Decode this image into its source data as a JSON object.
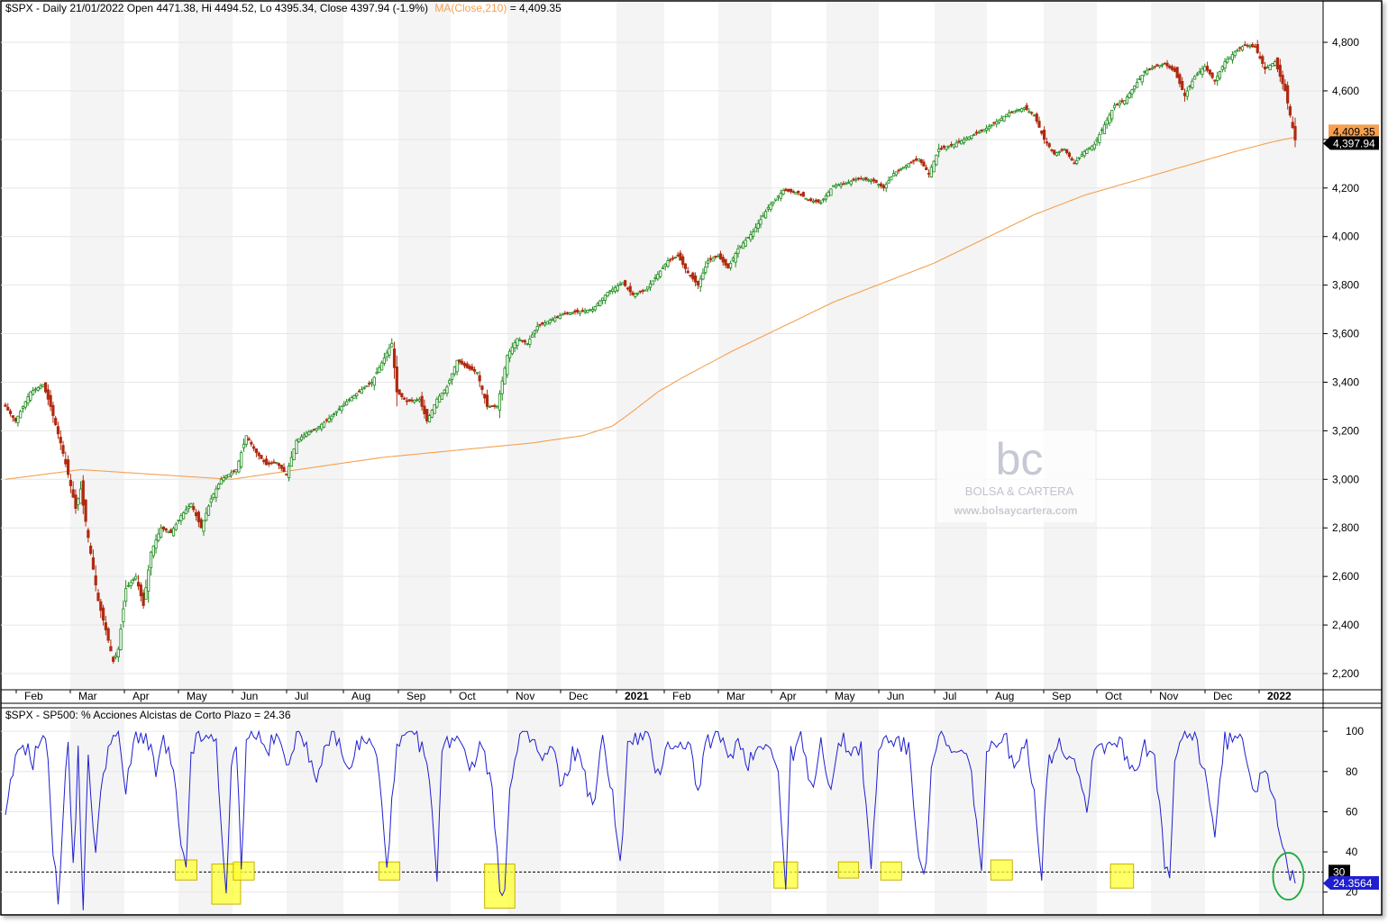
{
  "header": {
    "price_info": "$SPX - Daily 21/01/2022 Open 4471.38, Hi 4494.52, Lo 4395.34, Close 4397.94 (-1.9%)",
    "ma_label": "MA(Close,210)",
    "ma_value": " = 4,409.35",
    "indicator_info": "$SPX - SP500: % Acciones Alcistas de Corto Plazo = 24.36"
  },
  "watermark": {
    "logo_text": "bc",
    "name": "BOLSA & CARTERA",
    "url": "www.bolsaycartera.com"
  },
  "colors": {
    "up": "#1a8a1a",
    "down": "#b02a10",
    "ma": "#f5a050",
    "indicator": "#1f1fd0",
    "highlight": "#ffff33",
    "circle": "#1aaa3a"
  },
  "chart_data": [
    {
      "type": "candlestick",
      "title": "$SPX - Daily 21/01/2022",
      "ylim": [
        2150,
        4870
      ],
      "yticks": [
        2200,
        2400,
        2600,
        2800,
        3000,
        3200,
        3400,
        3600,
        3800,
        4000,
        4200,
        4400,
        4600,
        4800
      ],
      "ytick_labels": [
        "2,200",
        "2,400",
        "2,600",
        "2,800",
        "3,000",
        "3,200",
        "3,400",
        "3,600",
        "3,800",
        "4,000",
        "4,200",
        "4,400",
        "4,600",
        "4,800"
      ],
      "last_close_label": "4,397.94",
      "ma_label_value": "4,409.35",
      "x_months": [
        {
          "label": "Feb",
          "bold": false
        },
        {
          "label": "Mar",
          "bold": false
        },
        {
          "label": "Apr",
          "bold": false
        },
        {
          "label": "May",
          "bold": false
        },
        {
          "label": "Jun",
          "bold": false
        },
        {
          "label": "Jul",
          "bold": false
        },
        {
          "label": "Aug",
          "bold": false
        },
        {
          "label": "Sep",
          "bold": false
        },
        {
          "label": "Oct",
          "bold": false
        },
        {
          "label": "Nov",
          "bold": false
        },
        {
          "label": "Dec",
          "bold": false
        },
        {
          "label": "2021",
          "bold": true
        },
        {
          "label": "Feb",
          "bold": false
        },
        {
          "label": "Mar",
          "bold": false
        },
        {
          "label": "Apr",
          "bold": false
        },
        {
          "label": "May",
          "bold": false
        },
        {
          "label": "Jun",
          "bold": false
        },
        {
          "label": "Jul",
          "bold": false
        },
        {
          "label": "Aug",
          "bold": false
        },
        {
          "label": "Sep",
          "bold": false
        },
        {
          "label": "Oct",
          "bold": false
        },
        {
          "label": "Nov",
          "bold": false
        },
        {
          "label": "Dec",
          "bold": false
        },
        {
          "label": "2022",
          "bold": true
        }
      ],
      "price_keypoints": [
        [
          0,
          3300
        ],
        [
          4,
          3240
        ],
        [
          10,
          3360
        ],
        [
          15,
          3390
        ],
        [
          18,
          3300
        ],
        [
          22,
          3150
        ],
        [
          25,
          3020
        ],
        [
          28,
          2880
        ],
        [
          30,
          2960
        ],
        [
          33,
          2760
        ],
        [
          37,
          2500
        ],
        [
          40,
          2380
        ],
        [
          43,
          2250
        ],
        [
          45,
          2300
        ],
        [
          48,
          2550
        ],
        [
          52,
          2600
        ],
        [
          55,
          2480
        ],
        [
          58,
          2700
        ],
        [
          62,
          2800
        ],
        [
          66,
          2780
        ],
        [
          70,
          2850
        ],
        [
          74,
          2900
        ],
        [
          78,
          2800
        ],
        [
          82,
          2920
        ],
        [
          86,
          3000
        ],
        [
          92,
          3040
        ],
        [
          96,
          3180
        ],
        [
          100,
          3110
        ],
        [
          104,
          3060
        ],
        [
          108,
          3070
        ],
        [
          112,
          3020
        ],
        [
          116,
          3160
        ],
        [
          120,
          3190
        ],
        [
          124,
          3210
        ],
        [
          130,
          3260
        ],
        [
          136,
          3320
        ],
        [
          142,
          3370
        ],
        [
          146,
          3400
        ],
        [
          150,
          3480
        ],
        [
          154,
          3560
        ],
        [
          156,
          3360
        ],
        [
          160,
          3320
        ],
        [
          165,
          3330
        ],
        [
          168,
          3240
        ],
        [
          172,
          3330
        ],
        [
          176,
          3380
        ],
        [
          180,
          3490
        ],
        [
          184,
          3460
        ],
        [
          188,
          3440
        ],
        [
          192,
          3300
        ],
        [
          196,
          3300
        ],
        [
          200,
          3510
        ],
        [
          204,
          3580
        ],
        [
          208,
          3560
        ],
        [
          212,
          3630
        ],
        [
          218,
          3660
        ],
        [
          222,
          3680
        ],
        [
          228,
          3690
        ],
        [
          234,
          3700
        ],
        [
          240,
          3770
        ],
        [
          246,
          3810
        ],
        [
          250,
          3760
        ],
        [
          255,
          3780
        ],
        [
          259,
          3830
        ],
        [
          264,
          3900
        ],
        [
          268,
          3920
        ],
        [
          272,
          3850
        ],
        [
          276,
          3800
        ],
        [
          280,
          3900
        ],
        [
          284,
          3920
        ],
        [
          288,
          3870
        ],
        [
          292,
          3950
        ],
        [
          298,
          4020
        ],
        [
          304,
          4120
        ],
        [
          310,
          4190
        ],
        [
          316,
          4180
        ],
        [
          320,
          4150
        ],
        [
          325,
          4140
        ],
        [
          330,
          4210
        ],
        [
          335,
          4220
        ],
        [
          340,
          4240
        ],
        [
          346,
          4230
        ],
        [
          350,
          4200
        ],
        [
          354,
          4260
        ],
        [
          360,
          4300
        ],
        [
          364,
          4320
        ],
        [
          368,
          4260
        ],
        [
          372,
          4360
        ],
        [
          378,
          4380
        ],
        [
          382,
          4400
        ],
        [
          386,
          4420
        ],
        [
          390,
          4440
        ],
        [
          396,
          4480
        ],
        [
          400,
          4510
        ],
        [
          406,
          4530
        ],
        [
          410,
          4500
        ],
        [
          414,
          4400
        ],
        [
          418,
          4340
        ],
        [
          422,
          4360
        ],
        [
          426,
          4300
        ],
        [
          430,
          4350
        ],
        [
          434,
          4380
        ],
        [
          438,
          4460
        ],
        [
          442,
          4540
        ],
        [
          446,
          4560
        ],
        [
          450,
          4620
        ],
        [
          454,
          4680
        ],
        [
          458,
          4700
        ],
        [
          462,
          4710
        ],
        [
          466,
          4680
        ],
        [
          470,
          4580
        ],
        [
          474,
          4660
        ],
        [
          478,
          4700
        ],
        [
          482,
          4640
        ],
        [
          486,
          4720
        ],
        [
          490,
          4760
        ],
        [
          494,
          4790
        ],
        [
          498,
          4780
        ],
        [
          502,
          4690
        ],
        [
          506,
          4720
        ],
        [
          510,
          4600
        ],
        [
          512,
          4500
        ],
        [
          514,
          4397.94
        ]
      ],
      "ma_keypoints": [
        [
          0,
          3000
        ],
        [
          30,
          3040
        ],
        [
          60,
          3020
        ],
        [
          90,
          3000
        ],
        [
          110,
          3030
        ],
        [
          130,
          3060
        ],
        [
          150,
          3090
        ],
        [
          170,
          3110
        ],
        [
          190,
          3130
        ],
        [
          210,
          3150
        ],
        [
          230,
          3180
        ],
        [
          242,
          3220
        ],
        [
          250,
          3280
        ],
        [
          260,
          3360
        ],
        [
          270,
          3420
        ],
        [
          290,
          3530
        ],
        [
          310,
          3630
        ],
        [
          330,
          3730
        ],
        [
          350,
          3810
        ],
        [
          370,
          3890
        ],
        [
          390,
          3990
        ],
        [
          410,
          4090
        ],
        [
          430,
          4170
        ],
        [
          450,
          4230
        ],
        [
          470,
          4290
        ],
        [
          490,
          4350
        ],
        [
          505,
          4390
        ],
        [
          514,
          4409.35
        ]
      ]
    },
    {
      "type": "line",
      "title": "SP500: % Acciones Alcistas de Corto Plazo",
      "ylim": [
        10,
        105
      ],
      "yticks": [
        20,
        40,
        60,
        80,
        100
      ],
      "ytick_labels": [
        "20",
        "40",
        "60",
        "80",
        "100"
      ],
      "reference_line": {
        "value": 30,
        "label": "30",
        "style": "dashed"
      },
      "last_value_label": "24.3564",
      "indicator_keypoints": [
        [
          0,
          55
        ],
        [
          3,
          80
        ],
        [
          7,
          95
        ],
        [
          11,
          85
        ],
        [
          14,
          97
        ],
        [
          17,
          90
        ],
        [
          19,
          40
        ],
        [
          21,
          15
        ],
        [
          23,
          60
        ],
        [
          25,
          95
        ],
        [
          27,
          30
        ],
        [
          29,
          90
        ],
        [
          31,
          12
        ],
        [
          33,
          85
        ],
        [
          36,
          40
        ],
        [
          39,
          80
        ],
        [
          42,
          98
        ],
        [
          45,
          96
        ],
        [
          48,
          70
        ],
        [
          52,
          99
        ],
        [
          56,
          97
        ],
        [
          60,
          80
        ],
        [
          63,
          95
        ],
        [
          67,
          80
        ],
        [
          70,
          40
        ],
        [
          72,
          30
        ],
        [
          74,
          90
        ],
        [
          77,
          98
        ],
        [
          80,
          95
        ],
        [
          84,
          96
        ],
        [
          88,
          15
        ],
        [
          90,
          80
        ],
        [
          92,
          96
        ],
        [
          94,
          30
        ],
        [
          96,
          98
        ],
        [
          100,
          99
        ],
        [
          104,
          90
        ],
        [
          108,
          97
        ],
        [
          112,
          85
        ],
        [
          116,
          98
        ],
        [
          120,
          96
        ],
        [
          124,
          70
        ],
        [
          128,
          96
        ],
        [
          132,
          98
        ],
        [
          136,
          80
        ],
        [
          140,
          92
        ],
        [
          144,
          96
        ],
        [
          148,
          88
        ],
        [
          152,
          35
        ],
        [
          156,
          90
        ],
        [
          160,
          98
        ],
        [
          164,
          97
        ],
        [
          168,
          85
        ],
        [
          172,
          30
        ],
        [
          174,
          90
        ],
        [
          178,
          98
        ],
        [
          182,
          96
        ],
        [
          186,
          80
        ],
        [
          190,
          97
        ],
        [
          194,
          70
        ],
        [
          197,
          20
        ],
        [
          199,
          25
        ],
        [
          201,
          70
        ],
        [
          205,
          97
        ],
        [
          210,
          96
        ],
        [
          214,
          85
        ],
        [
          218,
          92
        ],
        [
          222,
          70
        ],
        [
          226,
          90
        ],
        [
          230,
          85
        ],
        [
          234,
          60
        ],
        [
          238,
          95
        ],
        [
          242,
          70
        ],
        [
          245,
          32
        ],
        [
          248,
          92
        ],
        [
          252,
          97
        ],
        [
          256,
          96
        ],
        [
          260,
          78
        ],
        [
          264,
          96
        ],
        [
          268,
          90
        ],
        [
          272,
          97
        ],
        [
          276,
          70
        ],
        [
          280,
          96
        ],
        [
          284,
          97
        ],
        [
          288,
          88
        ],
        [
          292,
          95
        ],
        [
          296,
          85
        ],
        [
          300,
          92
        ],
        [
          304,
          97
        ],
        [
          308,
          78
        ],
        [
          311,
          22
        ],
        [
          313,
          88
        ],
        [
          317,
          97
        ],
        [
          321,
          70
        ],
        [
          325,
          95
        ],
        [
          329,
          72
        ],
        [
          333,
          96
        ],
        [
          337,
          90
        ],
        [
          341,
          93
        ],
        [
          345,
          30
        ],
        [
          348,
          92
        ],
        [
          352,
          97
        ],
        [
          356,
          95
        ],
        [
          360,
          90
        ],
        [
          364,
          40
        ],
        [
          367,
          30
        ],
        [
          369,
          85
        ],
        [
          373,
          97
        ],
        [
          377,
          88
        ],
        [
          381,
          90
        ],
        [
          385,
          80
        ],
        [
          389,
          30
        ],
        [
          391,
          85
        ],
        [
          395,
          97
        ],
        [
          399,
          95
        ],
        [
          403,
          80
        ],
        [
          407,
          96
        ],
        [
          410,
          70
        ],
        [
          413,
          28
        ],
        [
          415,
          80
        ],
        [
          419,
          95
        ],
        [
          423,
          90
        ],
        [
          427,
          85
        ],
        [
          431,
          60
        ],
        [
          434,
          95
        ],
        [
          438,
          92
        ],
        [
          442,
          97
        ],
        [
          446,
          90
        ],
        [
          450,
          80
        ],
        [
          454,
          95
        ],
        [
          458,
          85
        ],
        [
          462,
          35
        ],
        [
          464,
          25
        ],
        [
          466,
          85
        ],
        [
          470,
          98
        ],
        [
          474,
          97
        ],
        [
          478,
          80
        ],
        [
          482,
          50
        ],
        [
          486,
          95
        ],
        [
          490,
          97
        ],
        [
          494,
          92
        ],
        [
          498,
          70
        ],
        [
          502,
          85
        ],
        [
          506,
          65
        ],
        [
          509,
          40
        ],
        [
          511,
          30
        ],
        [
          514,
          24.36
        ]
      ],
      "highlights": [
        {
          "center": 72,
          "from": 26,
          "to": 36
        },
        {
          "center": 88,
          "from": 14,
          "to": 34
        },
        {
          "center": 95,
          "from": 26,
          "to": 35
        },
        {
          "center": 153,
          "from": 26,
          "to": 35
        },
        {
          "center": 197,
          "from": 12,
          "to": 34
        },
        {
          "center": 311,
          "from": 22,
          "to": 35
        },
        {
          "center": 336,
          "from": 27,
          "to": 35
        },
        {
          "center": 353,
          "from": 26,
          "to": 35
        },
        {
          "center": 397,
          "from": 26,
          "to": 36
        },
        {
          "center": 445,
          "from": 22,
          "to": 34
        }
      ],
      "circle_at": {
        "x": 512,
        "y": 27
      }
    }
  ]
}
